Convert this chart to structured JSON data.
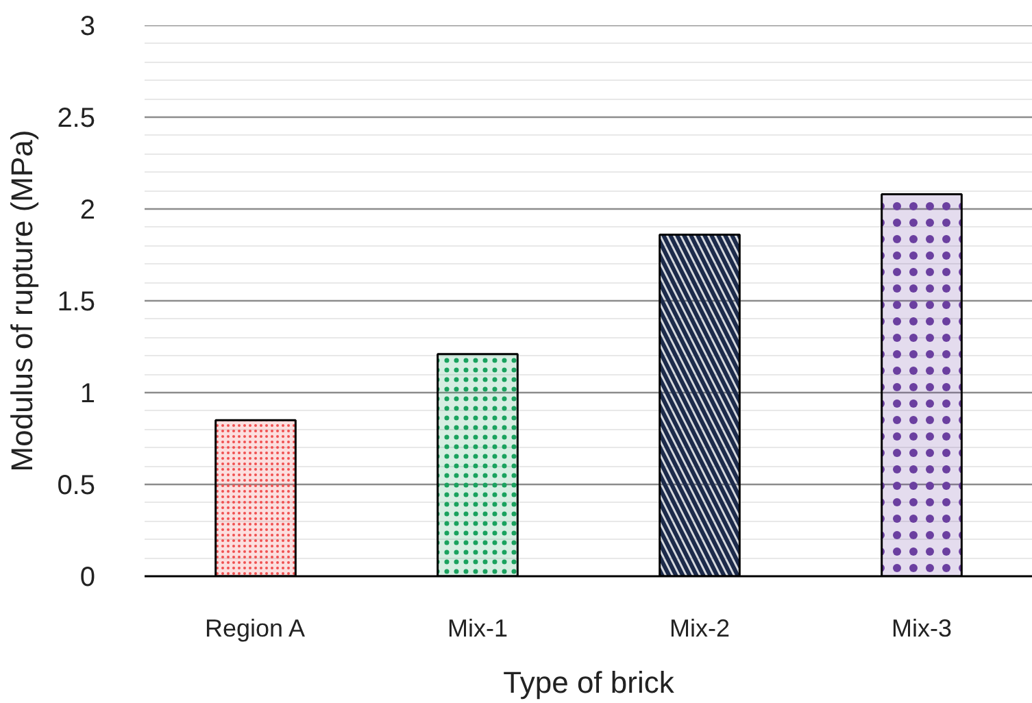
{
  "chart_data": {
    "type": "bar",
    "xlabel": "Type of brick",
    "ylabel": "Modulus of rupture (MPa)",
    "categories": [
      "Region A",
      "Mix-1",
      "Mix-2",
      "Mix-3"
    ],
    "values": [
      0.85,
      1.21,
      1.86,
      2.08
    ],
    "colors": [
      "#f05050",
      "#1aa25e",
      "#1c2a4a",
      "#6b3fa0"
    ],
    "ylim": [
      0,
      3
    ],
    "yticks": [
      0,
      0.5,
      1,
      1.5,
      2,
      2.5,
      3
    ],
    "grid": "y"
  }
}
